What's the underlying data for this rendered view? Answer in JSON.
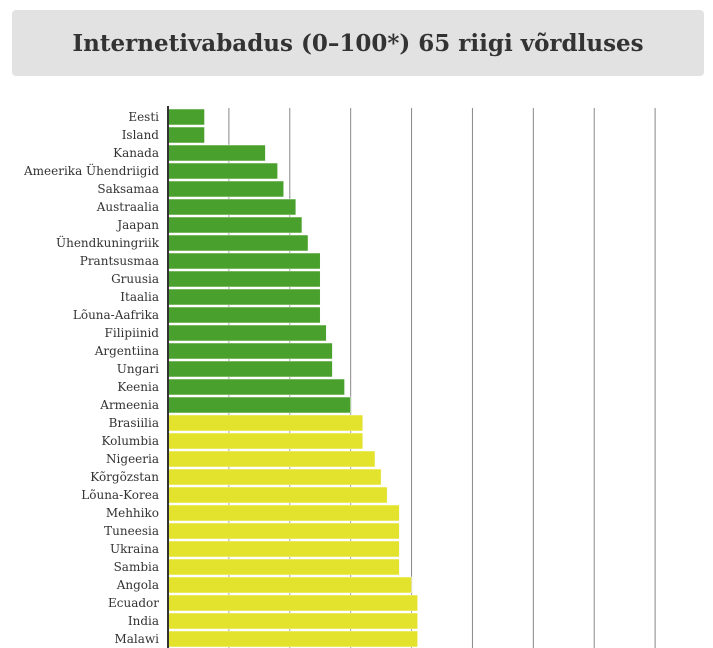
{
  "chart_data": {
    "type": "bar",
    "orientation": "horizontal",
    "title": "Internetivabadus (0–100*) 65 riigi võrdluses",
    "xlim": [
      0,
      90
    ],
    "grid": "vertical",
    "colors": {
      "free": "#4aa02c",
      "partly_free": "#e3e22c",
      "grid": "#888888",
      "axis": "#333333"
    },
    "categories": [
      "Eesti",
      "Island",
      "Kanada",
      "Ameerika Ühendriigid",
      "Saksamaa",
      "Austraalia",
      "Jaapan",
      "Ühendkuningriik",
      "Prantsusmaa",
      "Gruusia",
      "Itaalia",
      "Lõuna-Aafrika",
      "Filipiinid",
      "Argentiina",
      "Ungari",
      "Keenia",
      "Armeenia",
      "Brasiilia",
      "Kolumbia",
      "Nigeeria",
      "Kõrgõzstan",
      "Lõuna-Korea",
      "Mehhiko",
      "Tuneesia",
      "Ukraina",
      "Sambia",
      "Angola",
      "Ecuador",
      "India",
      "Malawi"
    ],
    "values": [
      6,
      6,
      16,
      18,
      19,
      21,
      22,
      23,
      25,
      25,
      25,
      25,
      26,
      27,
      27,
      29,
      30,
      32,
      32,
      34,
      35,
      36,
      38,
      38,
      38,
      38,
      40,
      41,
      41,
      41
    ],
    "groups": [
      "free",
      "free",
      "free",
      "free",
      "free",
      "free",
      "free",
      "free",
      "free",
      "free",
      "free",
      "free",
      "free",
      "free",
      "free",
      "free",
      "free",
      "partly_free",
      "partly_free",
      "partly_free",
      "partly_free",
      "partly_free",
      "partly_free",
      "partly_free",
      "partly_free",
      "partly_free",
      "partly_free",
      "partly_free",
      "partly_free",
      "partly_free"
    ]
  }
}
